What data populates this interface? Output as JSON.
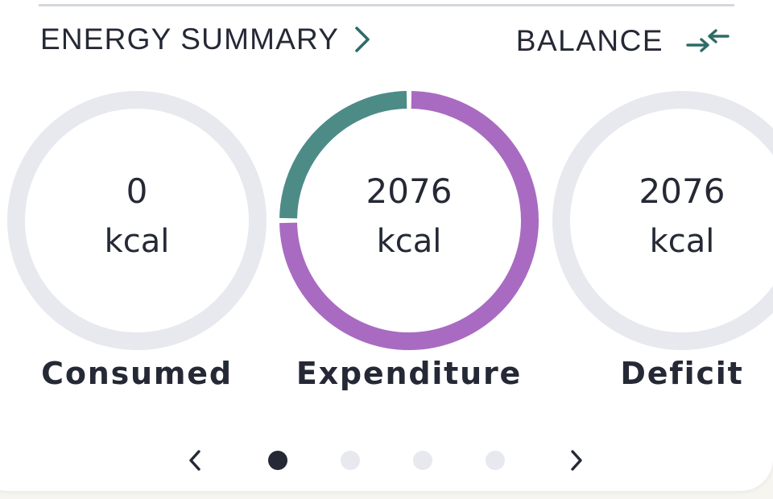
{
  "header": {
    "title": "ENERGY SUMMARY",
    "balance_label": "BALANCE",
    "chevron_icon": "chevron-right-icon",
    "balance_icon": "swap-arrows-icon"
  },
  "rings": [
    {
      "value": "0",
      "unit": "kcal",
      "label": "Consumed"
    },
    {
      "value": "2076",
      "unit": "kcal",
      "label": "Expenditure"
    },
    {
      "value": "2076",
      "unit": "kcal",
      "label": "Deficit"
    }
  ],
  "expenditure_split": {
    "segments": [
      {
        "fraction": 0.75,
        "color": "#a86bc1"
      },
      {
        "fraction": 0.25,
        "color": "#4d8b87"
      }
    ]
  },
  "pager": {
    "page_count": 4,
    "active_index": 0
  },
  "colors": {
    "text": "#252935",
    "accent_teal": "#2e6b67",
    "ring_track": "#e7e9ef",
    "expenditure_purple": "#a86bc1",
    "expenditure_teal": "#4d8b87"
  }
}
